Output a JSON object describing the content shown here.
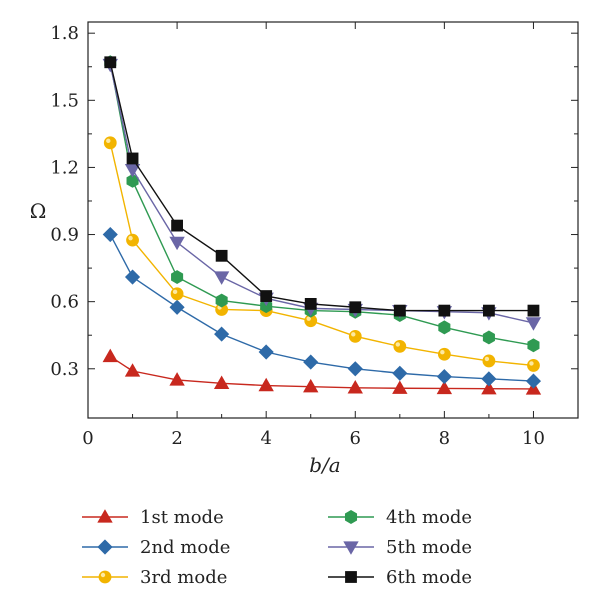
{
  "chart_data": {
    "type": "line",
    "xlabel": "b/a",
    "ylabel": "Ω",
    "xlim": [
      0,
      11
    ],
    "ylim": [
      0.08,
      1.85
    ],
    "xticks": [
      0,
      2,
      4,
      6,
      8,
      10
    ],
    "yticks": [
      0.3,
      0.6,
      0.9,
      1.2,
      1.5,
      1.8
    ],
    "xtick_labels": [
      "0",
      "2",
      "4",
      "6",
      "8",
      "10"
    ],
    "ytick_labels": [
      "0.3",
      "0.6",
      "0.9",
      "1.2",
      "1.5",
      "1.8"
    ],
    "x": [
      0.5,
      1,
      2,
      3,
      4,
      5,
      6,
      7,
      8,
      9,
      10
    ],
    "legend_position": "bottom",
    "grid": false,
    "series": [
      {
        "name": "1st mode",
        "color": "#c8281e",
        "marker": "triangle-up",
        "values": [
          0.355,
          0.29,
          0.25,
          0.235,
          0.225,
          0.22,
          0.215,
          0.213,
          0.212,
          0.211,
          0.21
        ]
      },
      {
        "name": "2nd mode",
        "color": "#2e6aa8",
        "marker": "diamond",
        "values": [
          0.9,
          0.71,
          0.575,
          0.455,
          0.375,
          0.33,
          0.3,
          0.28,
          0.265,
          0.255,
          0.245
        ]
      },
      {
        "name": "3rd mode",
        "color": "#f2b400",
        "marker": "circle",
        "values": [
          1.31,
          0.875,
          0.635,
          0.565,
          0.56,
          0.515,
          0.445,
          0.4,
          0.365,
          0.335,
          0.315
        ]
      },
      {
        "name": "4th mode",
        "color": "#2f9a52",
        "marker": "hexagon",
        "values": [
          1.67,
          1.14,
          0.71,
          0.605,
          0.58,
          0.56,
          0.555,
          0.54,
          0.485,
          0.44,
          0.405
        ]
      },
      {
        "name": "5th mode",
        "color": "#6a66a6",
        "marker": "triangle-down",
        "values": [
          1.66,
          1.19,
          0.865,
          0.71,
          0.615,
          0.57,
          0.565,
          0.56,
          0.555,
          0.55,
          0.505
        ]
      },
      {
        "name": "6th mode",
        "color": "#111111",
        "marker": "square",
        "values": [
          1.67,
          1.24,
          0.94,
          0.805,
          0.625,
          0.59,
          0.575,
          0.56,
          0.56,
          0.56,
          0.56
        ]
      }
    ]
  }
}
